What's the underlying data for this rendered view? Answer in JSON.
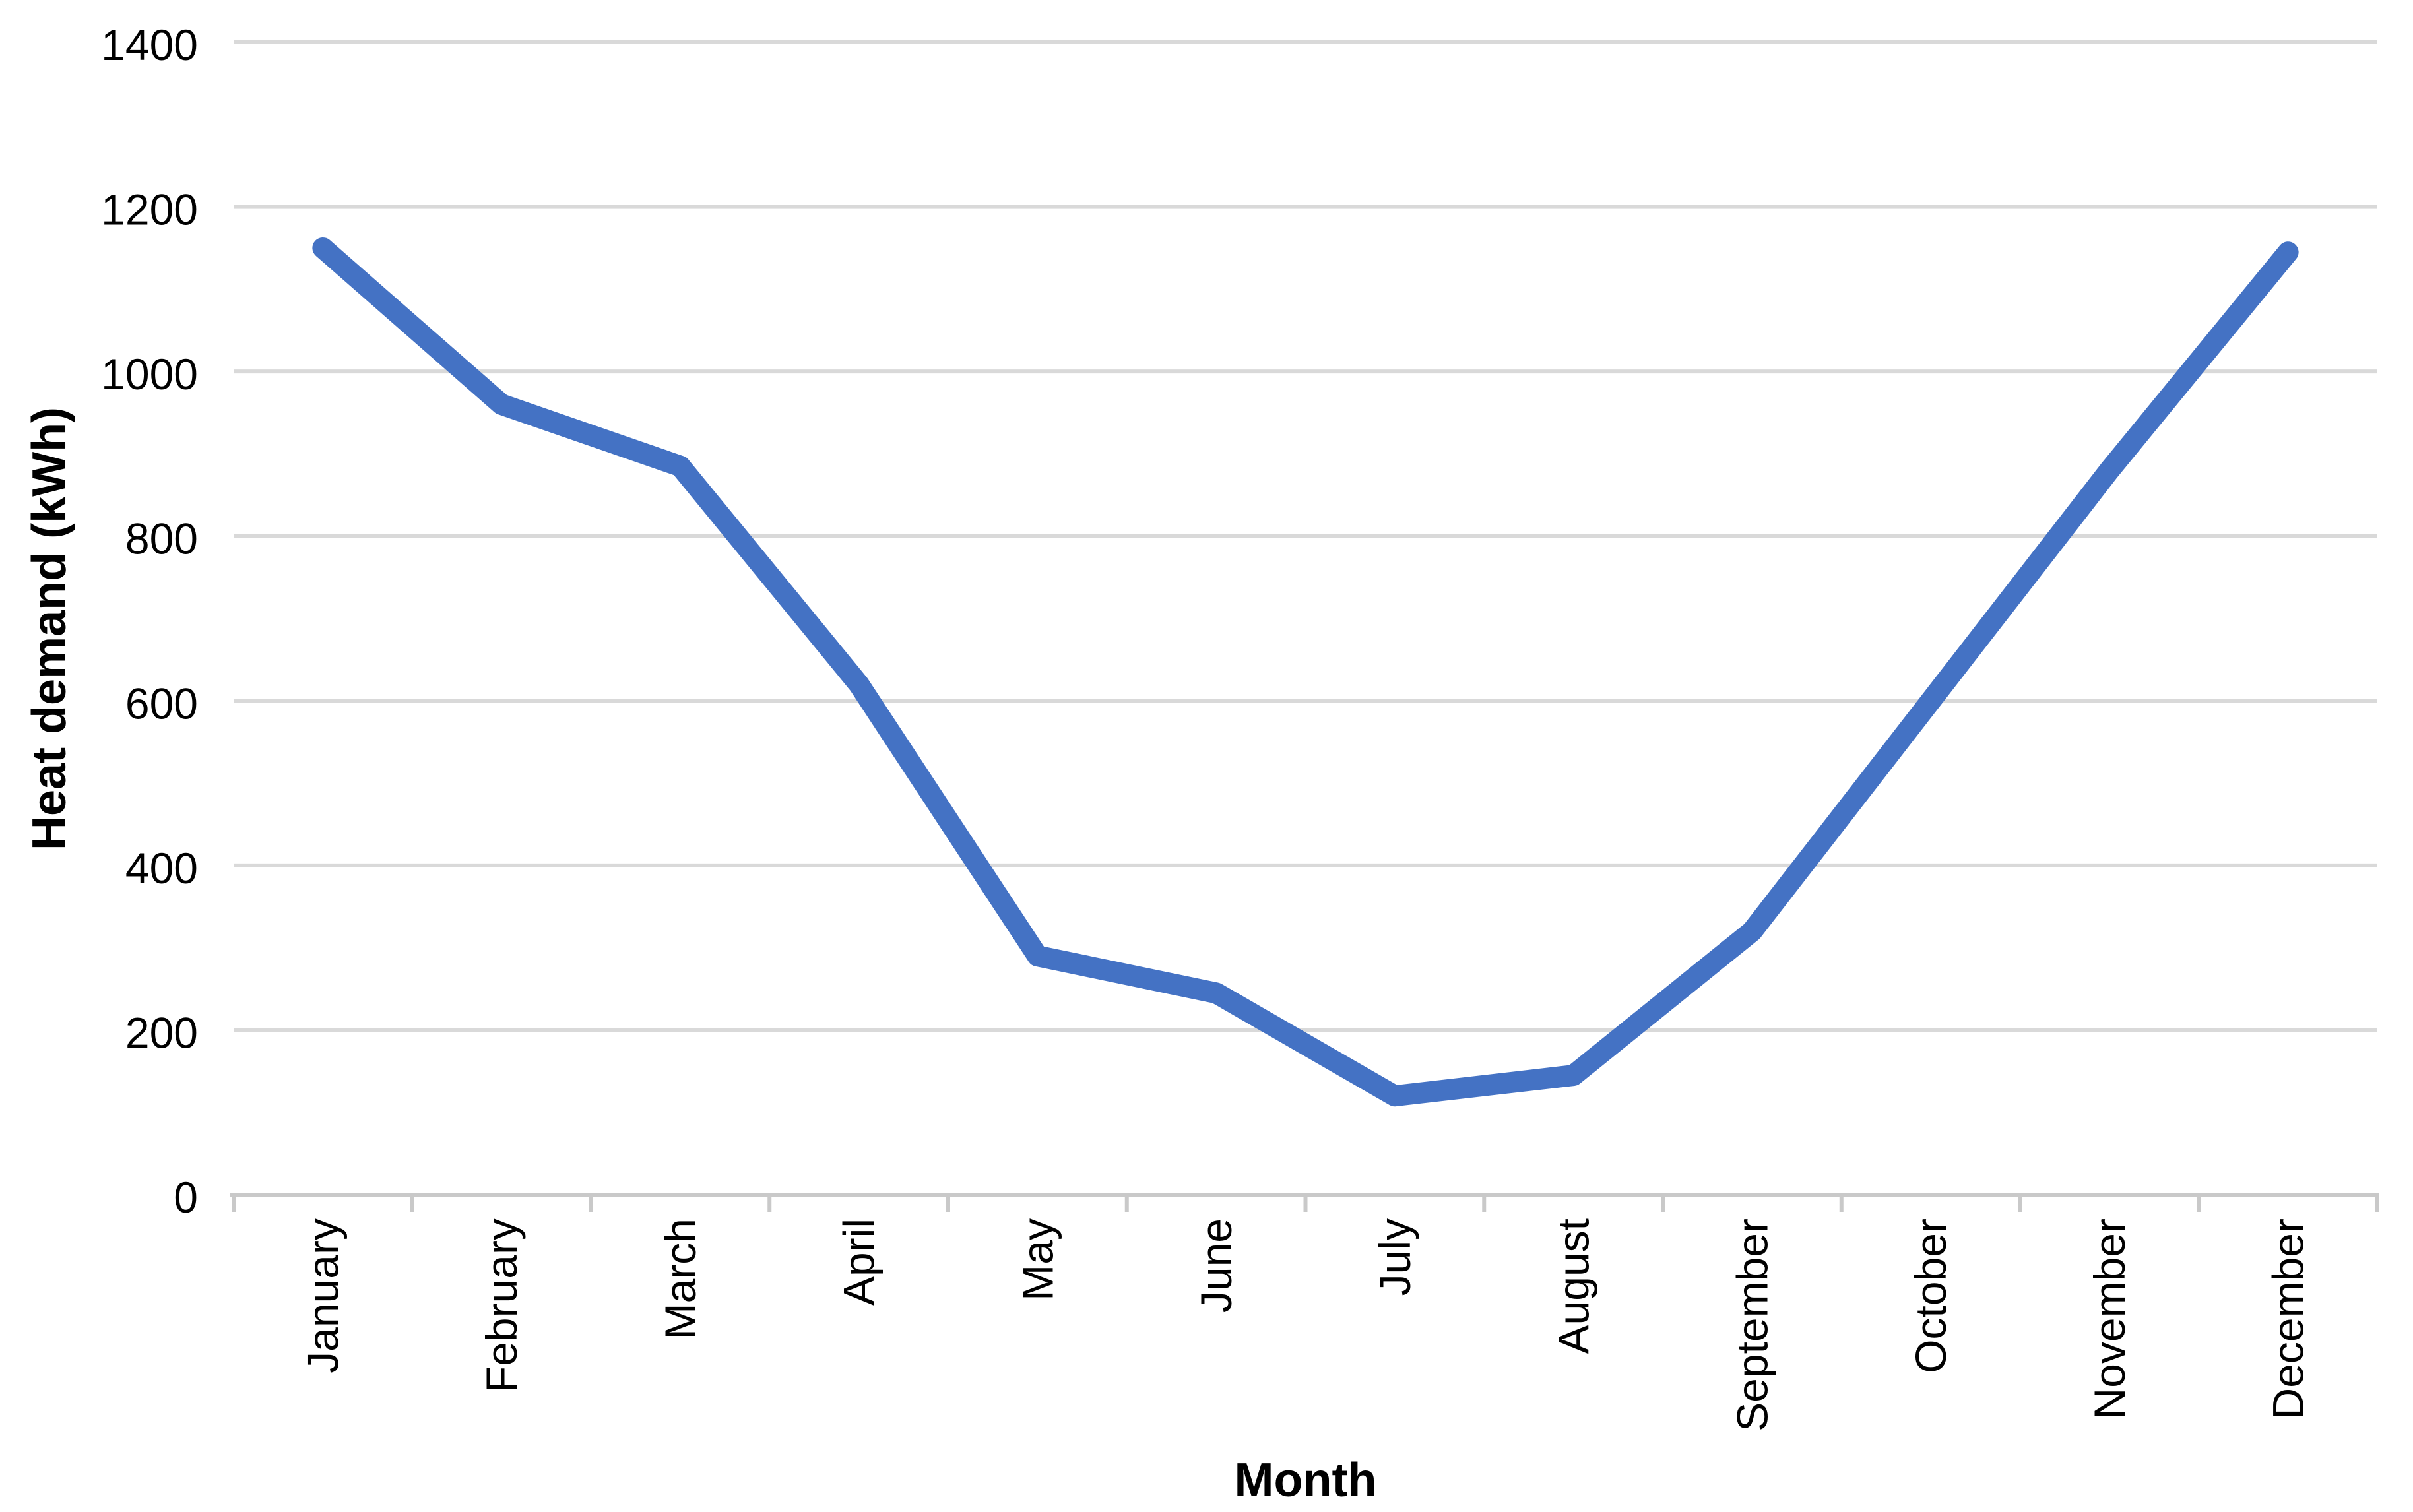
{
  "chart_data": {
    "type": "line",
    "xlabel": "Month",
    "ylabel": "Heat demand (kWh)",
    "categories": [
      "January",
      "February",
      "March",
      "April",
      "May",
      "June",
      "July",
      "August",
      "September",
      "October",
      "November",
      "December"
    ],
    "series": [
      {
        "name": "Heat demand (kWh)",
        "values": [
          1150,
          960,
          885,
          620,
          290,
          245,
          120,
          145,
          320,
          600,
          880,
          1145
        ]
      }
    ],
    "ylim": [
      0,
      1400
    ],
    "yticks": [
      0,
      200,
      400,
      600,
      800,
      1000,
      1200,
      1400
    ],
    "grid": "horizontal-only",
    "legend": "none",
    "marker": "none",
    "colors": {
      "line": "#4472C4",
      "gridline": "#D9D9D9",
      "axis": "#C9C9C9",
      "text": "#000000",
      "background": "#FFFFFF"
    }
  }
}
